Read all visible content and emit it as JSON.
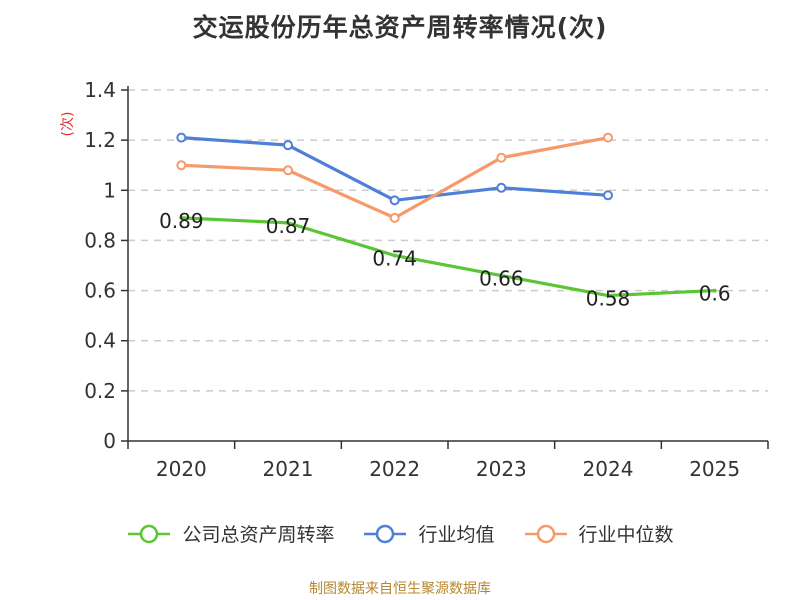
{
  "title": "交运股份历年总资产周转率情况(次)",
  "source_note": "制图数据来自恒生聚源数据库",
  "chart_data": {
    "type": "line",
    "title": "交运股份历年总资产周转率情况(次)",
    "ylabel": "(次)",
    "xlabel": "",
    "categories": [
      "2020",
      "2021",
      "2022",
      "2023",
      "2024",
      "2025"
    ],
    "ylim": [
      0,
      1.4
    ],
    "yticks": [
      0,
      0.2,
      0.4,
      0.6,
      0.8,
      1,
      1.2,
      1.4
    ],
    "ytick_labels": [
      "0",
      "0.2",
      "0.4",
      "0.6",
      "0.8",
      "1",
      "1.2",
      "1.4"
    ],
    "grid": true,
    "legend_position": "bottom",
    "series": [
      {
        "name": "公司总资产周转率",
        "color": "#5ac634",
        "values": [
          0.89,
          0.87,
          0.74,
          0.66,
          0.58,
          0.6
        ],
        "data_labels": [
          "0.89",
          "0.87",
          "0.74",
          "0.66",
          "0.58",
          "0.6"
        ],
        "show_markers": false
      },
      {
        "name": "行业均值",
        "color": "#4f7fd9",
        "values": [
          1.21,
          1.18,
          0.96,
          1.01,
          0.98,
          null
        ],
        "show_markers": true
      },
      {
        "name": "行业中位数",
        "color": "#f79a6b",
        "values": [
          1.1,
          1.08,
          0.89,
          1.13,
          1.21,
          null
        ],
        "show_markers": true
      }
    ]
  }
}
